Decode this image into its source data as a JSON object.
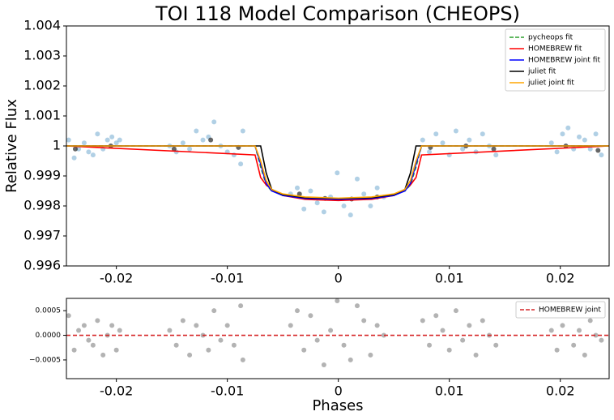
{
  "chart_data": [
    {
      "type": "line",
      "title": "TOI 118 Model Comparison (CHEOPS)",
      "ylabel": "Relative Flux",
      "xlim": [
        -0.0245,
        0.0244
      ],
      "ylim": [
        0.996,
        1.004
      ],
      "xticks": [
        -0.02,
        -0.01,
        0,
        0.01,
        0.02
      ],
      "yticks": [
        0.996,
        0.997,
        0.998,
        0.999,
        1,
        1.001,
        1.002,
        1.003,
        1.004
      ],
      "legend": "upper right",
      "x": [
        -0.0245,
        -0.0075,
        -0.007,
        -0.0065,
        -0.006,
        -0.005,
        -0.003,
        0,
        0.003,
        0.005,
        0.006,
        0.0065,
        0.007,
        0.0075,
        0.0244
      ],
      "series": [
        {
          "name": "pycheops fit",
          "color": "#2ca02c",
          "dash": true,
          "values": [
            1,
            1,
            0.9993,
            0.9987,
            0.9985,
            0.99838,
            0.99828,
            0.99825,
            0.99828,
            0.99838,
            0.9985,
            0.9987,
            0.9993,
            1,
            1
          ]
        },
        {
          "name": "HOMEBREW fit",
          "color": "#ff0000",
          "dash": false,
          "values": [
            1,
            0.9997,
            0.99895,
            0.9987,
            0.99855,
            0.99835,
            0.99822,
            0.99818,
            0.99822,
            0.99835,
            0.99855,
            0.9987,
            0.99895,
            0.9997,
            1
          ]
        },
        {
          "name": "HOMEBREW joint fit",
          "color": "#0000ff",
          "dash": false,
          "values": [
            1,
            1,
            0.9994,
            0.99875,
            0.9985,
            0.99835,
            0.99825,
            0.99822,
            0.99825,
            0.99835,
            0.9985,
            0.99875,
            0.9994,
            1,
            1
          ]
        },
        {
          "name": "juliet fit",
          "color": "#000000",
          "dash": false,
          "values": [
            1,
            1,
            1,
            0.9991,
            0.99855,
            0.99838,
            0.99828,
            0.99825,
            0.99828,
            0.99838,
            0.99855,
            0.9991,
            1,
            1,
            1
          ]
        },
        {
          "name": "juliet joint fit",
          "color": "#ffa500",
          "dash": false,
          "values": [
            1,
            1,
            0.9995,
            0.99885,
            0.99855,
            0.9984,
            0.9983,
            0.99826,
            0.9983,
            0.9984,
            0.99855,
            0.99885,
            0.9995,
            1,
            1
          ]
        }
      ],
      "data_points": {
        "color": "#1f77b4",
        "x": [
          -0.0243,
          -0.0238,
          -0.0234,
          -0.0229,
          -0.0225,
          -0.0221,
          -0.0217,
          -0.0212,
          -0.0208,
          -0.0204,
          -0.02,
          -0.0197,
          -0.0152,
          -0.0146,
          -0.014,
          -0.0134,
          -0.0128,
          -0.0122,
          -0.0117,
          -0.0112,
          -0.0106,
          -0.01,
          -0.0094,
          -0.0088,
          -0.0086,
          -0.0043,
          -0.0037,
          -0.0031,
          -0.0025,
          -0.0019,
          -0.0013,
          -0.0007,
          -0.0001,
          0.0005,
          0.0011,
          0.0017,
          0.0023,
          0.0029,
          0.0035,
          0.0041,
          0.0076,
          0.0082,
          0.0088,
          0.0094,
          0.01,
          0.0106,
          0.0112,
          0.0118,
          0.0124,
          0.013,
          0.0136,
          0.0142,
          0.0192,
          0.0197,
          0.0202,
          0.0207,
          0.0212,
          0.0217,
          0.0222,
          0.0227,
          0.0232,
          0.0237
        ],
        "y": [
          1.0002,
          0.9996,
          0.9999,
          1.0001,
          0.9998,
          0.9997,
          1.0004,
          0.9999,
          1.0002,
          1.0003,
          1.0001,
          1.0002,
          1.0,
          0.9998,
          1.0001,
          0.9999,
          1.0005,
          1.0002,
          1.0003,
          1.0008,
          1.0,
          0.9998,
          0.9997,
          0.9994,
          1.0005,
          0.9984,
          0.9986,
          0.9979,
          0.9985,
          0.9981,
          0.9978,
          0.9983,
          0.9991,
          0.998,
          0.9977,
          0.9989,
          0.9984,
          0.998,
          0.9986,
          0.9983,
          1.0002,
          0.9998,
          1.0004,
          1.0001,
          0.9997,
          1.0005,
          0.9999,
          1.0002,
          0.9998,
          1.0004,
          1.0,
          0.9997,
          1.0001,
          0.9998,
          1.0004,
          1.0006,
          0.9999,
          1.0003,
          1.0002,
          0.9999,
          1.0004,
          0.9997
        ]
      },
      "binned_points": {
        "color": "#000000",
        "x": [
          -0.0237,
          -0.0205,
          -0.0148,
          -0.0115,
          -0.009,
          -0.0035,
          -0.0012,
          0.0012,
          0.0035,
          0.0083,
          0.0115,
          0.014,
          0.0205,
          0.0234
        ],
        "y": [
          0.9999,
          1.0,
          0.9999,
          1.0002,
          0.99995,
          0.9984,
          0.99825,
          0.99823,
          0.9983,
          0.99995,
          1.0,
          0.9999,
          1.0,
          0.99985
        ]
      }
    },
    {
      "type": "scatter",
      "xlabel": "Phases",
      "xlim": [
        -0.0245,
        0.0244
      ],
      "ylim": [
        -0.00088,
        0.00075
      ],
      "xticks": [
        -0.02,
        -0.01,
        0,
        0.01,
        0.02
      ],
      "yticks": [
        {
          "value": -0.0005,
          "label": "−0.0005"
        },
        {
          "value": 0,
          "label": "0.0000"
        },
        0.0005
      ],
      "legend": "upper right",
      "hline": {
        "name": "HOMEBREW joint",
        "color": "#d62728",
        "value": 0
      },
      "points": {
        "color": "#808080",
        "x": [
          -0.0243,
          -0.0238,
          -0.0234,
          -0.0229,
          -0.0225,
          -0.0221,
          -0.0217,
          -0.0212,
          -0.0208,
          -0.0204,
          -0.02,
          -0.0197,
          -0.0152,
          -0.0146,
          -0.014,
          -0.0134,
          -0.0128,
          -0.0122,
          -0.0117,
          -0.0112,
          -0.0106,
          -0.01,
          -0.0094,
          -0.0088,
          -0.0086,
          -0.0043,
          -0.0037,
          -0.0031,
          -0.0025,
          -0.0019,
          -0.0013,
          -0.0007,
          -0.0001,
          0.0005,
          0.0011,
          0.0017,
          0.0023,
          0.0029,
          0.0035,
          0.0041,
          0.0076,
          0.0082,
          0.0088,
          0.0094,
          0.01,
          0.0106,
          0.0112,
          0.0118,
          0.0124,
          0.013,
          0.0136,
          0.0142,
          0.0192,
          0.0197,
          0.0202,
          0.0207,
          0.0212,
          0.0217,
          0.0222,
          0.0227,
          0.0232,
          0.0237
        ],
        "y": [
          0.0004,
          -0.0003,
          0.0001,
          0.0002,
          -0.0001,
          -0.0002,
          0.0003,
          -0.0004,
          0.0,
          0.0002,
          -0.0003,
          0.0001,
          0.0001,
          -0.0002,
          0.0003,
          -0.0004,
          0.0002,
          0.0,
          -0.0003,
          0.0005,
          -0.0001,
          0.0002,
          -0.0002,
          0.0006,
          -0.0005,
          0.0002,
          0.0005,
          -0.0003,
          0.0004,
          -0.0001,
          -0.0006,
          0.0001,
          0.0007,
          -0.0002,
          -0.0005,
          0.0006,
          0.0003,
          -0.0004,
          0.0002,
          0.0,
          0.0003,
          -0.0002,
          0.0004,
          0.0001,
          -0.0003,
          0.0005,
          -0.0001,
          0.0002,
          -0.0004,
          0.0003,
          0.0,
          -0.0002,
          0.0001,
          -0.0003,
          0.0002,
          0.0004,
          -0.0002,
          0.0001,
          -0.0004,
          0.0003,
          0.0,
          -0.0001
        ]
      }
    }
  ]
}
